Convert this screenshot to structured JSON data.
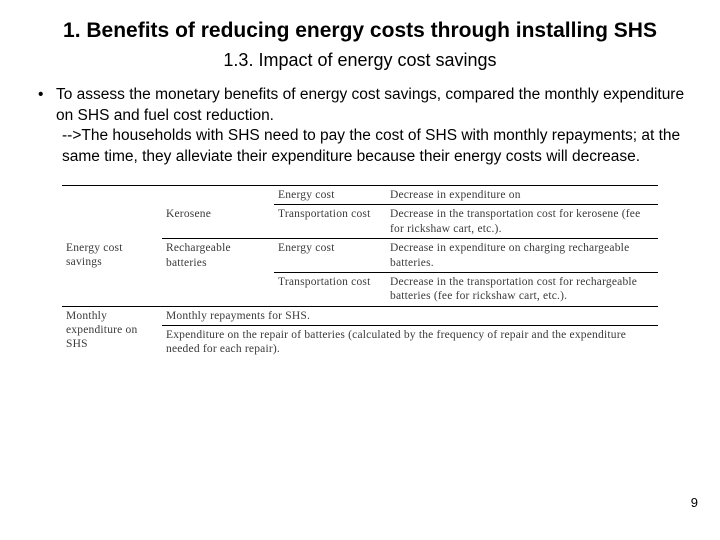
{
  "title": "1. Benefits of reducing energy costs through installing SHS",
  "subtitle": "1.3. Impact of energy cost savings",
  "bullet": {
    "dot": "•",
    "line1": "To assess the monetary benefits of energy cost savings, compared the monthly expenditure on SHS and fuel cost reduction.",
    "line2": "-->The households with SHS need to pay the cost of SHS with monthly repayments; at the same time, they alleviate their expenditure because their energy costs will decrease."
  },
  "table": {
    "rows": [
      {
        "col1": "",
        "col2": "",
        "col3": "Energy cost",
        "col4": "Decrease in expenditure on"
      },
      {
        "col1": "",
        "col2": "Kerosene",
        "col3": "Transportation cost",
        "col4": "Decrease in the transportation cost for kerosene (fee for rickshaw cart, etc.)."
      },
      {
        "col1": "Energy cost savings",
        "col2": "Rechargeable batteries",
        "col3": "Energy cost",
        "col4": "Decrease in expenditure on charging rechargeable batteries."
      },
      {
        "col1": "",
        "col2": "",
        "col3": "Transportation cost",
        "col4": "Decrease in the transportation cost for rechargeable batteries (fee for rickshaw cart, etc.)."
      },
      {
        "col1": "Monthly expenditure on SHS",
        "col2a": "Monthly repayments for SHS.",
        "col2b": "Expenditure on the repair of batteries (calculated by the frequency of repair and the expenditure needed for each repair)."
      }
    ]
  },
  "page_number": "9",
  "colors": {
    "text": "#000000",
    "table_text": "#3a3a3a",
    "background": "#ffffff",
    "border": "#000000"
  }
}
